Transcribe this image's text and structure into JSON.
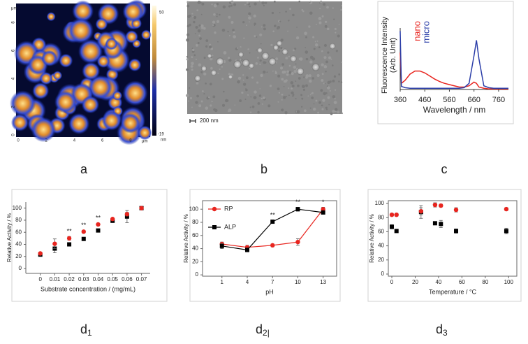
{
  "panels": {
    "a": {
      "label": "a",
      "x_ticks": [
        0,
        2,
        4,
        6,
        8
      ],
      "y_ticks": [
        0,
        2,
        4,
        6,
        8
      ],
      "unit": "μm",
      "colorbar_max": "50",
      "colorbar_min": "-19",
      "colorbar_unit": "nm"
    },
    "b": {
      "label": "b",
      "scale_bar": "200 nm"
    },
    "c": {
      "label": "c"
    },
    "d1": {
      "letter": "d",
      "sub": "1"
    },
    "d2": {
      "letter": "d",
      "sub": "2",
      "cursor": "|"
    },
    "d3": {
      "letter": "d",
      "sub": "3"
    }
  },
  "chart_data": [
    {
      "type": "line",
      "xlabel": "Wavelength / nm",
      "ylabel": [
        "Fluorescence Intensity",
        "(Arb. Unit)"
      ],
      "x": [
        360,
        365,
        380,
        400,
        420,
        440,
        460,
        480,
        500,
        520,
        540,
        560,
        580,
        600,
        620,
        640,
        660,
        670,
        680,
        700,
        720,
        740,
        760,
        780,
        800
      ],
      "series": [
        {
          "name": "nano",
          "color": "#e8251f",
          "values": [
            0.6,
            0.1,
            0.15,
            0.25,
            0.3,
            0.3,
            0.27,
            0.22,
            0.17,
            0.13,
            0.1,
            0.08,
            0.06,
            0.04,
            0.04,
            0.06,
            0.12,
            0.1,
            0.04,
            0.02,
            0.01,
            0.01,
            0.01,
            0.01,
            0.01
          ]
        },
        {
          "name": "micro",
          "color": "#2b3ea8",
          "values": [
            0.95,
            0.05,
            0.03,
            0.02,
            0.02,
            0.02,
            0.02,
            0.02,
            0.02,
            0.02,
            0.02,
            0.02,
            0.02,
            0.02,
            0.03,
            0.1,
            0.55,
            0.8,
            0.5,
            0.06,
            0.03,
            0.02,
            0.02,
            0.02,
            0.02
          ]
        }
      ],
      "xlim": [
        360,
        800
      ],
      "ylim": [
        0,
        1
      ],
      "xticks": [
        360,
        460,
        560,
        660,
        760
      ],
      "legend": "top-left",
      "legend_orientation": "vertical"
    },
    {
      "type": "scatter",
      "xlabel": "Substrate concentration / (mg/mL)",
      "ylabel": "Relative Activity / %",
      "x": [
        0,
        0.01,
        0.02,
        0.03,
        0.04,
        0.05,
        0.06,
        0.07
      ],
      "series": [
        {
          "color": "#000000",
          "marker": "square",
          "values": [
            23,
            33,
            40,
            49,
            63,
            79,
            86,
            100
          ],
          "errors": [
            2,
            7,
            2,
            1,
            1,
            2,
            10,
            1
          ]
        },
        {
          "color": "#e8251f",
          "marker": "circle",
          "values": [
            25,
            41,
            50,
            61,
            73,
            82,
            90,
            100
          ],
          "errors": [
            2,
            8,
            3,
            2,
            2,
            1,
            3,
            2
          ]
        }
      ],
      "annotations": [
        {
          "text": "**",
          "x": 0.02
        },
        {
          "text": "**",
          "x": 0.03
        },
        {
          "text": "**",
          "x": 0.04
        }
      ],
      "xlim": [
        -0.01,
        0.076
      ],
      "ylim": [
        -8,
        110
      ],
      "xticks": [
        0,
        0.01,
        0.02,
        0.03,
        0.04,
        0.05,
        0.06,
        0.07
      ],
      "yticks": [
        0,
        20,
        40,
        60,
        80,
        100
      ],
      "frame": false
    },
    {
      "type": "line",
      "xlabel": "pH",
      "ylabel": "Relative Activity / %",
      "x": [
        1,
        4,
        7,
        10,
        13
      ],
      "series": [
        {
          "name": "RP",
          "color": "#e8251f",
          "marker": "circle",
          "values": [
            47,
            42,
            45,
            50,
            100
          ],
          "errors": [
            3,
            3,
            2,
            5,
            3
          ]
        },
        {
          "name": "ALP",
          "color": "#000000",
          "marker": "square",
          "values": [
            44,
            38,
            81,
            100,
            95
          ],
          "errors": [
            4,
            3,
            2,
            3,
            2
          ]
        }
      ],
      "annotations": [
        {
          "text": "**",
          "x": 7
        },
        {
          "text": "**",
          "x": 10
        },
        {
          "text": "*",
          "x": 13
        }
      ],
      "xlim": [
        -1.3,
        14.6
      ],
      "ylim": [
        -2,
        113
      ],
      "xticks": [
        1,
        4,
        7,
        10,
        13
      ],
      "yticks": [
        0,
        20,
        40,
        60,
        80,
        100
      ],
      "frame": true,
      "legend": "top-left"
    },
    {
      "type": "scatter",
      "xlabel": "Temperature / °C",
      "ylabel": "Relative Activity / %",
      "series": [
        {
          "color": "#000000",
          "marker": "square",
          "x": [
            0,
            4,
            25,
            37,
            42,
            55,
            98
          ],
          "values": [
            67,
            61,
            88,
            72,
            71,
            61,
            61
          ],
          "errors": [
            3,
            2,
            9,
            2,
            5,
            3,
            4
          ]
        },
        {
          "color": "#e8251f",
          "marker": "circle",
          "x": [
            0,
            4,
            25,
            37,
            42,
            55,
            98
          ],
          "values": [
            84,
            84,
            89,
            98,
            97,
            91,
            92
          ],
          "errors": [
            2,
            2,
            5,
            3,
            2,
            3,
            2
          ]
        }
      ],
      "xlim": [
        -3,
        107
      ],
      "ylim": [
        -3,
        104
      ],
      "xticks": [
        0,
        20,
        40,
        60,
        80,
        100
      ],
      "yticks": [
        0,
        20,
        40,
        60,
        80,
        100
      ],
      "frame": true
    }
  ]
}
